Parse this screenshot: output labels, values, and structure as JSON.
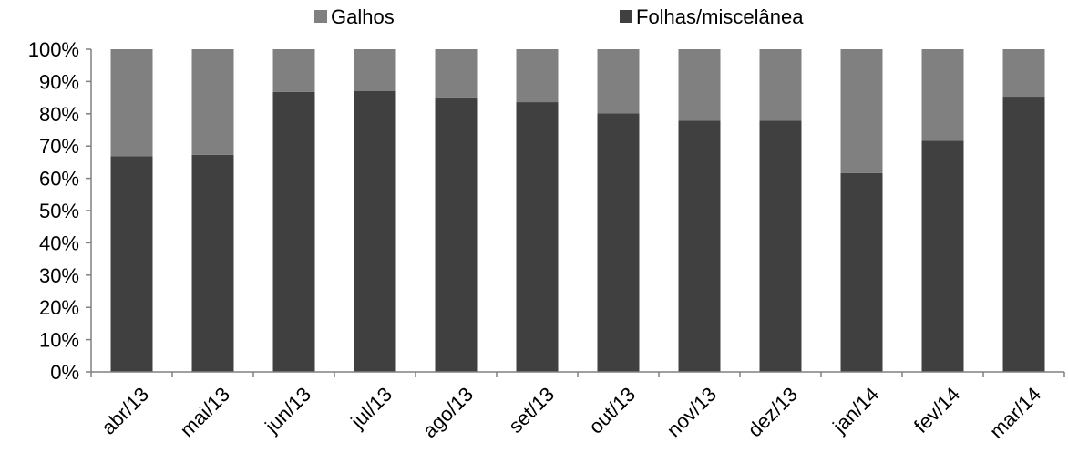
{
  "chart_data": {
    "type": "bar",
    "stacked": true,
    "normalized": true,
    "categories": [
      "abr/13",
      "mai/13",
      "jun/13",
      "jul/13",
      "ago/13",
      "set/13",
      "out/13",
      "nov/13",
      "dez/13",
      "jan/14",
      "fev/14",
      "mar/14"
    ],
    "series": [
      {
        "name": "Folhas/miscelânea",
        "color": "#404040",
        "values": [
          66.8,
          67.3,
          86.8,
          87.1,
          85.1,
          83.6,
          80.1,
          77.9,
          77.9,
          61.6,
          71.6,
          85.3
        ]
      },
      {
        "name": "Galhos",
        "color": "#808080",
        "values": [
          33.2,
          32.7,
          13.2,
          12.9,
          14.9,
          16.4,
          19.9,
          22.1,
          22.1,
          38.4,
          28.4,
          14.7
        ]
      }
    ],
    "legend": {
      "position": "top",
      "order": [
        "Galhos",
        "Folhas/miscelânea"
      ]
    },
    "yticks": [
      "0%",
      "10%",
      "20%",
      "30%",
      "40%",
      "50%",
      "60%",
      "70%",
      "80%",
      "90%",
      "100%"
    ],
    "ylim": [
      0,
      100
    ],
    "grid": false,
    "axis_color": "#808080"
  }
}
